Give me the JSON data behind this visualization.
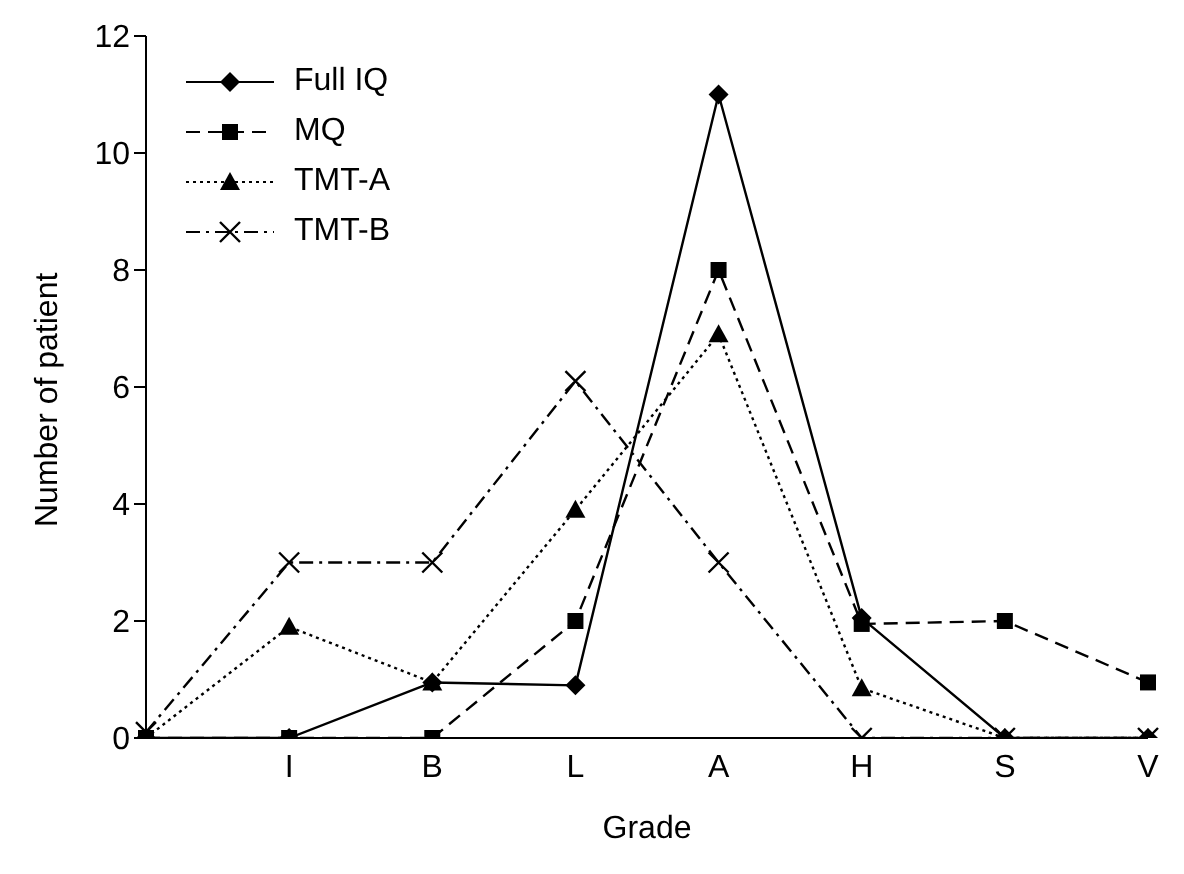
{
  "chart_data": {
    "type": "line",
    "xlabel": "Grade",
    "ylabel": "Number of patient",
    "categories": [
      null,
      "I",
      "B",
      "L",
      "A",
      "H",
      "S",
      "V"
    ],
    "ylim": [
      0,
      12
    ],
    "yticks": [
      0,
      2,
      4,
      6,
      8,
      10,
      12
    ],
    "grid": false,
    "legend": "top left",
    "series": [
      {
        "name": "Full IQ",
        "color": "#000000",
        "marker": "diamond",
        "line_style": "solid",
        "values": [
          0,
          0,
          0.95,
          0.9,
          11,
          2.05,
          0,
          0
        ]
      },
      {
        "name": "MQ",
        "color": "#000000",
        "marker": "square",
        "line_style": "dashed",
        "values": [
          0,
          0,
          0,
          2,
          8,
          1.95,
          2,
          0.95
        ]
      },
      {
        "name": "TMT-A",
        "color": "#000000",
        "marker": "triangle",
        "line_style": "dotted",
        "values": [
          0,
          1.9,
          0.95,
          3.9,
          6.9,
          0.85,
          0,
          0
        ]
      },
      {
        "name": "TMT-B",
        "color": "#000000",
        "marker": "cross",
        "line_style": "dashdot",
        "values": [
          0.1,
          3,
          3,
          6.1,
          3,
          0,
          0,
          0
        ]
      }
    ]
  }
}
